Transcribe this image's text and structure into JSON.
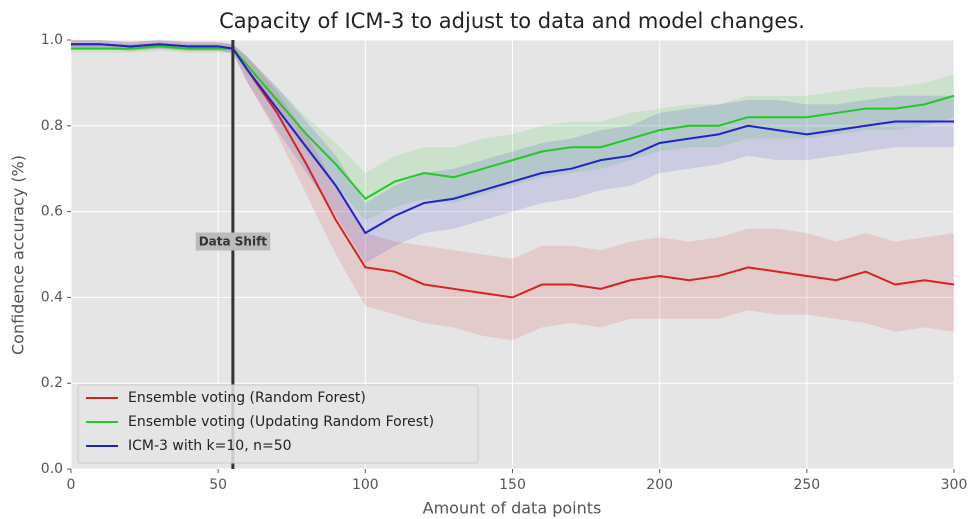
{
  "chart_data": {
    "type": "line",
    "title": "Capacity of ICM-3 to adjust to data and model changes.",
    "xlabel": "Amount of data points",
    "ylabel": "Confidence accuracy (%)",
    "x": [
      0,
      10,
      20,
      30,
      40,
      50,
      55,
      60,
      70,
      80,
      90,
      100,
      110,
      120,
      130,
      140,
      150,
      160,
      170,
      180,
      190,
      200,
      210,
      220,
      230,
      240,
      250,
      260,
      270,
      280,
      290,
      300
    ],
    "series": [
      {
        "name": "Ensemble voting (Random Forest)",
        "color": "#d62222",
        "values": [
          0.99,
          0.99,
          0.985,
          0.99,
          0.985,
          0.985,
          0.98,
          0.93,
          0.83,
          0.71,
          0.58,
          0.47,
          0.46,
          0.43,
          0.42,
          0.41,
          0.4,
          0.43,
          0.43,
          0.42,
          0.44,
          0.45,
          0.44,
          0.45,
          0.47,
          0.46,
          0.45,
          0.44,
          0.46,
          0.43,
          0.44,
          0.43
        ],
        "lower": [
          0.98,
          0.98,
          0.975,
          0.98,
          0.975,
          0.975,
          0.97,
          0.9,
          0.78,
          0.64,
          0.5,
          0.38,
          0.36,
          0.34,
          0.33,
          0.31,
          0.3,
          0.33,
          0.34,
          0.33,
          0.35,
          0.35,
          0.35,
          0.35,
          0.37,
          0.36,
          0.36,
          0.35,
          0.34,
          0.32,
          0.33,
          0.32
        ],
        "upper": [
          1.0,
          1.0,
          0.995,
          1.0,
          0.995,
          0.995,
          0.99,
          0.96,
          0.88,
          0.78,
          0.66,
          0.55,
          0.53,
          0.52,
          0.51,
          0.5,
          0.49,
          0.52,
          0.52,
          0.51,
          0.53,
          0.54,
          0.53,
          0.54,
          0.56,
          0.56,
          0.55,
          0.53,
          0.55,
          0.53,
          0.54,
          0.55
        ]
      },
      {
        "name": "Ensemble voting (Updating Random Forest)",
        "color": "#22c922",
        "values": [
          0.98,
          0.98,
          0.98,
          0.985,
          0.98,
          0.98,
          0.98,
          0.94,
          0.86,
          0.78,
          0.71,
          0.63,
          0.67,
          0.69,
          0.68,
          0.7,
          0.72,
          0.74,
          0.75,
          0.75,
          0.77,
          0.79,
          0.8,
          0.8,
          0.82,
          0.82,
          0.82,
          0.83,
          0.84,
          0.84,
          0.85,
          0.87
        ],
        "lower": [
          0.97,
          0.97,
          0.97,
          0.975,
          0.97,
          0.97,
          0.97,
          0.92,
          0.83,
          0.74,
          0.66,
          0.58,
          0.61,
          0.63,
          0.62,
          0.64,
          0.66,
          0.68,
          0.69,
          0.7,
          0.72,
          0.74,
          0.75,
          0.75,
          0.77,
          0.77,
          0.77,
          0.78,
          0.79,
          0.79,
          0.8,
          0.82
        ],
        "upper": [
          0.99,
          0.99,
          0.99,
          0.995,
          0.99,
          0.99,
          0.99,
          0.96,
          0.89,
          0.82,
          0.76,
          0.69,
          0.73,
          0.75,
          0.75,
          0.77,
          0.78,
          0.8,
          0.81,
          0.81,
          0.83,
          0.84,
          0.85,
          0.85,
          0.87,
          0.87,
          0.87,
          0.88,
          0.89,
          0.89,
          0.9,
          0.92
        ]
      },
      {
        "name": "ICM-3 with k=10, n=50",
        "color": "#2222cc",
        "values": [
          0.99,
          0.99,
          0.985,
          0.99,
          0.985,
          0.985,
          0.98,
          0.93,
          0.84,
          0.75,
          0.66,
          0.55,
          0.59,
          0.62,
          0.63,
          0.65,
          0.67,
          0.69,
          0.7,
          0.72,
          0.73,
          0.76,
          0.77,
          0.78,
          0.8,
          0.79,
          0.78,
          0.79,
          0.8,
          0.81,
          0.81,
          0.81
        ],
        "lower": [
          0.98,
          0.98,
          0.975,
          0.98,
          0.975,
          0.975,
          0.97,
          0.9,
          0.79,
          0.69,
          0.59,
          0.48,
          0.52,
          0.55,
          0.56,
          0.58,
          0.6,
          0.62,
          0.63,
          0.65,
          0.66,
          0.69,
          0.7,
          0.71,
          0.73,
          0.72,
          0.72,
          0.73,
          0.74,
          0.75,
          0.75,
          0.75
        ],
        "upper": [
          1.0,
          1.0,
          0.995,
          1.0,
          0.995,
          0.995,
          0.99,
          0.96,
          0.89,
          0.81,
          0.73,
          0.62,
          0.66,
          0.69,
          0.7,
          0.72,
          0.74,
          0.76,
          0.77,
          0.79,
          0.8,
          0.83,
          0.84,
          0.85,
          0.86,
          0.86,
          0.85,
          0.85,
          0.86,
          0.87,
          0.87,
          0.87
        ]
      }
    ],
    "vline": 55,
    "vline_label": "Data Shift",
    "xlim": [
      0,
      300
    ],
    "ylim": [
      0,
      1
    ],
    "xticks": [
      0,
      50,
      100,
      150,
      200,
      250,
      300
    ],
    "yticks": [
      {
        "value": 0,
        "label": "0.0"
      },
      0.2,
      0.4,
      0.6,
      0.8,
      {
        "value": 1,
        "label": "1.0"
      }
    ],
    "grid": true,
    "legend": "lower left"
  }
}
